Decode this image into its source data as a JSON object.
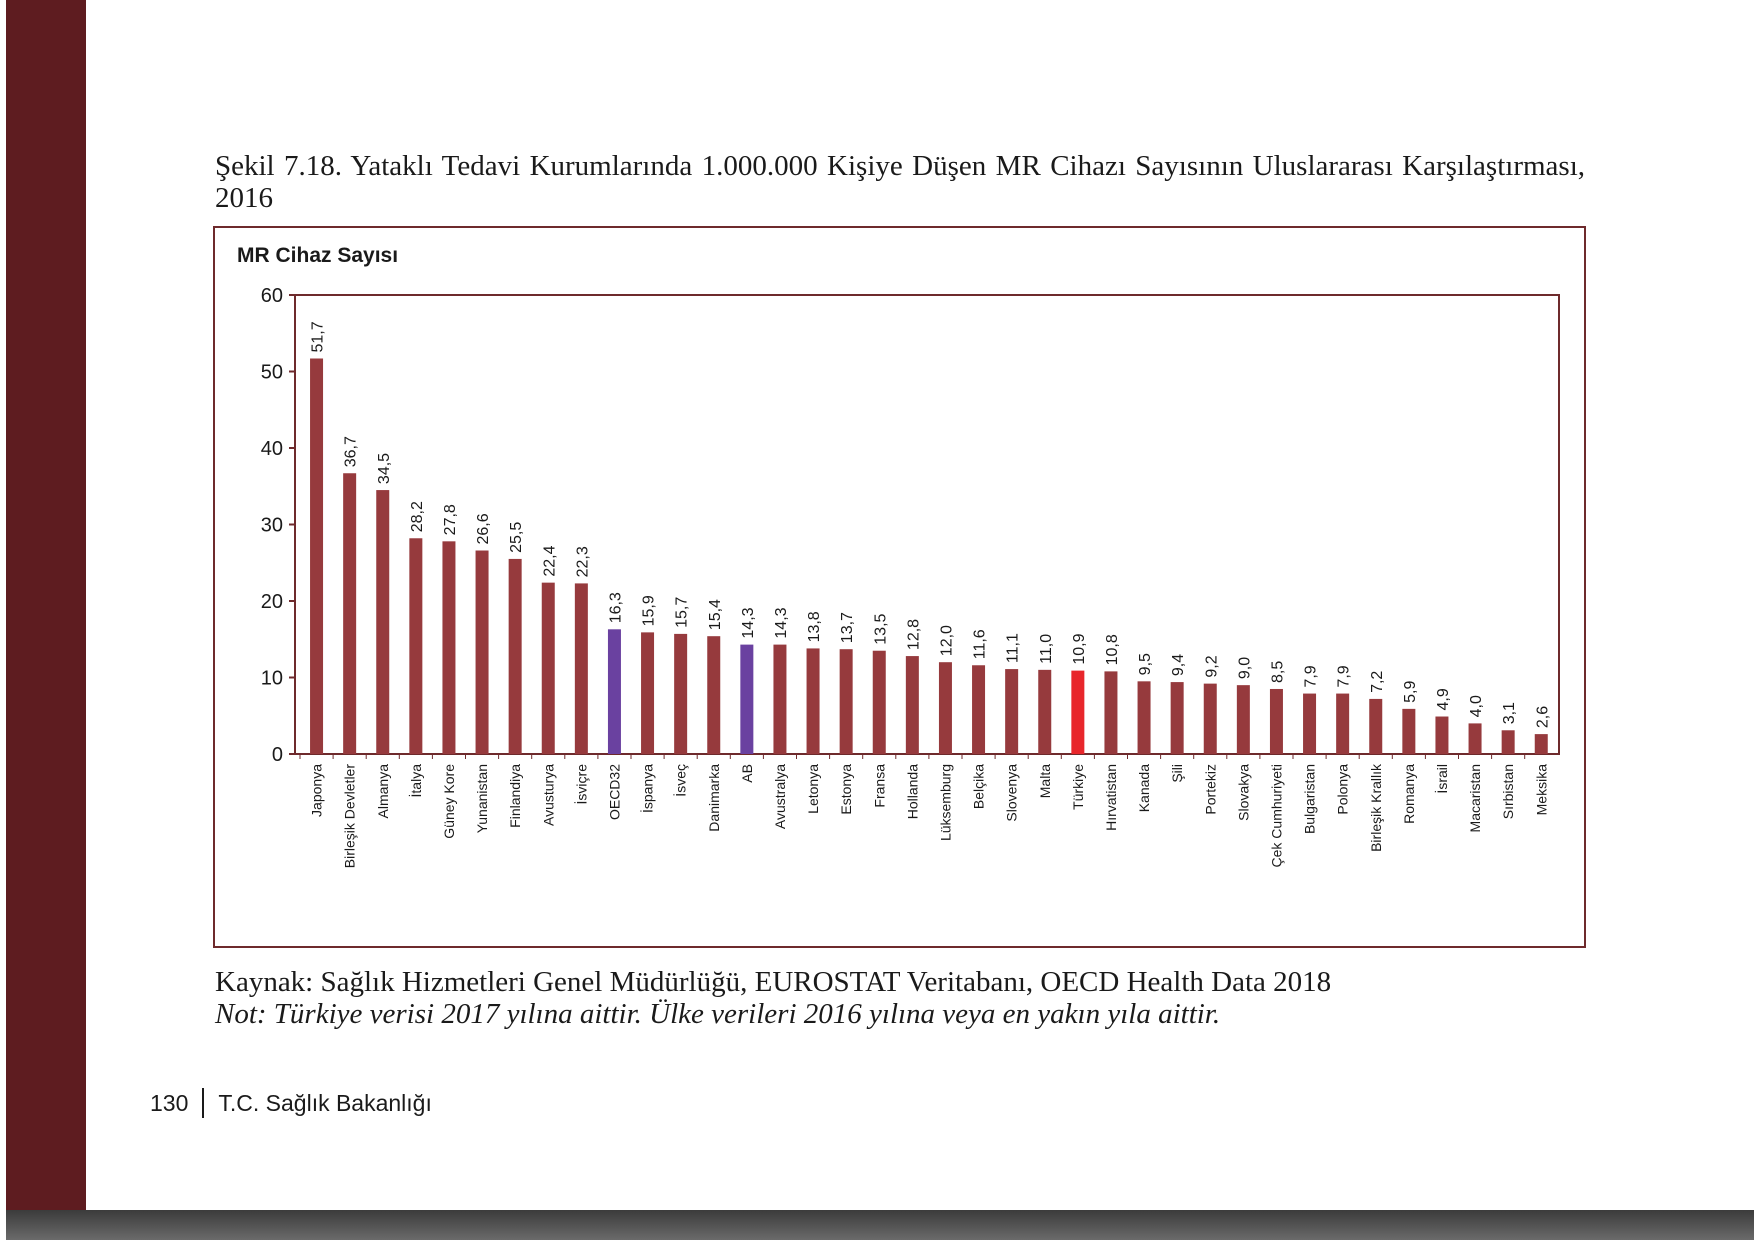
{
  "page": {
    "caption": "Şekil 7.18. Yataklı Tedavi Kurumlarında 1.000.000 Kişiye Düşen MR Cihazı Sayısının Uluslararası Karşılaştırması, 2016",
    "source": "Kaynak: Sağlık Hizmetleri Genel Müdürlüğü, EUROSTAT Veritabanı, OECD Health Data 2018",
    "note": "Not: Türkiye verisi 2017 yılına aittir. Ülke verileri 2016 yılına veya en yakın yıla aittir.",
    "page_number": "130",
    "publisher": "T.C. Sağlık Bakanlığı"
  },
  "colors": {
    "bar": "#963a3d",
    "highlight_average": "#6a41a0",
    "highlight_turkiye": "#e8262b",
    "sidebar": "#5e1c20",
    "frame": "#6e2a2c"
  },
  "chart_data": {
    "type": "bar",
    "title": "",
    "ylabel": "MR Cihaz Sayısı",
    "xlabel": "",
    "ylim": [
      0,
      60
    ],
    "yticks": [
      0,
      10,
      20,
      30,
      40,
      50,
      60
    ],
    "grid": false,
    "categories": [
      "Japonya",
      "Birleşik Devletler",
      "Almanya",
      "İtalya",
      "Güney Kore",
      "Yunanistan",
      "Finlandiya",
      "Avusturya",
      "İsviçre",
      "OECD32",
      "İspanya",
      "İsveç",
      "Danimarka",
      "AB",
      "Avustralya",
      "Letonya",
      "Estonya",
      "Fransa",
      "Hollanda",
      "Lüksemburg",
      "Belçika",
      "Slovenya",
      "Malta",
      "Türkiye",
      "Hırvatistan",
      "Kanada",
      "Şili",
      "Portekiz",
      "Slovakya",
      "Çek Cumhuriyeti",
      "Bulgaristan",
      "Polonya",
      "Birleşik Krallık",
      "Romanya",
      "İsrail",
      "Macaristan",
      "Sırbistan",
      "Meksika"
    ],
    "values": [
      51.7,
      36.7,
      34.5,
      28.2,
      27.8,
      26.6,
      25.5,
      22.4,
      22.3,
      16.3,
      15.9,
      15.7,
      15.4,
      14.3,
      14.3,
      13.8,
      13.7,
      13.5,
      12.8,
      12.0,
      11.6,
      11.1,
      11.0,
      10.9,
      10.8,
      9.5,
      9.4,
      9.2,
      9.0,
      8.5,
      7.9,
      7.9,
      7.2,
      5.9,
      4.9,
      4.0,
      3.1,
      2.6
    ],
    "value_labels": [
      "51,7",
      "36,7",
      "34,5",
      "28,2",
      "27,8",
      "26,6",
      "25,5",
      "22,4",
      "22,3",
      "16,3",
      "15,9",
      "15,7",
      "15,4",
      "14,3",
      "14,3",
      "13,8",
      "13,7",
      "13,5",
      "12,8",
      "12,0",
      "11,6",
      "11,1",
      "11,0",
      "10,9",
      "10,8",
      "9,5",
      "9,4",
      "9,2",
      "9,0",
      "8,5",
      "7,9",
      "7,9",
      "7,2",
      "5,9",
      "4,9",
      "4,0",
      "3,1",
      "2,6"
    ],
    "highlights": {
      "OECD32": "highlight_average",
      "AB": "highlight_average",
      "Türkiye": "highlight_turkiye"
    }
  }
}
